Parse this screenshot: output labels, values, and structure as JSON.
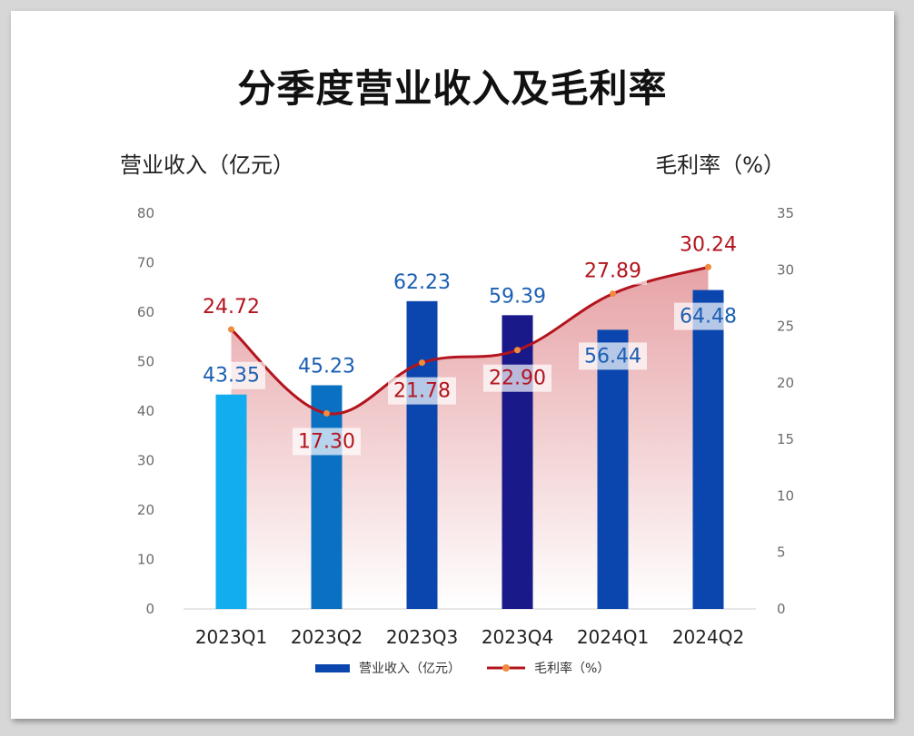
{
  "chart_data": {
    "type": "bar+line",
    "title": "分季度营业收入及毛利率",
    "categories": [
      "2023Q1",
      "2023Q2",
      "2023Q3",
      "2023Q4",
      "2024Q1",
      "2024Q2"
    ],
    "series": [
      {
        "name": "营业收入（亿元）",
        "type": "bar",
        "axis": "left",
        "values": [
          43.35,
          45.23,
          62.23,
          59.39,
          56.44,
          64.48
        ],
        "value_labels": [
          "43.35",
          "45.23",
          "62.23",
          "59.39",
          "56.44",
          "64.48"
        ],
        "colors": [
          "#12adef",
          "#0a70c1",
          "#0a46ad",
          "#19198a",
          "#0a46ad",
          "#0a46ad"
        ]
      },
      {
        "name": "毛利率（%）",
        "type": "line",
        "axis": "right",
        "values": [
          24.72,
          17.3,
          21.78,
          22.9,
          27.89,
          30.24
        ],
        "value_labels": [
          "24.72",
          "17.30",
          "21.78",
          "22.90",
          "27.89",
          "30.24"
        ],
        "color": "#b3141d",
        "marker_color": "#f08a3c"
      }
    ],
    "ylabel_left": "营业收入（亿元）",
    "ylabel_right": "毛利率（%）",
    "ylim_left": [
      0,
      80
    ],
    "ylim_right": [
      0,
      35
    ],
    "yticks_left": [
      "0",
      "10",
      "20",
      "30",
      "40",
      "50",
      "60",
      "70",
      "80"
    ],
    "yticks_right": [
      "0",
      "5",
      "10",
      "15",
      "20",
      "25",
      "30",
      "35"
    ],
    "grid": false,
    "legend_position": "bottom-center"
  },
  "legend": {
    "revenue": "营业收入（亿元）",
    "margin": "毛利率（%）"
  }
}
